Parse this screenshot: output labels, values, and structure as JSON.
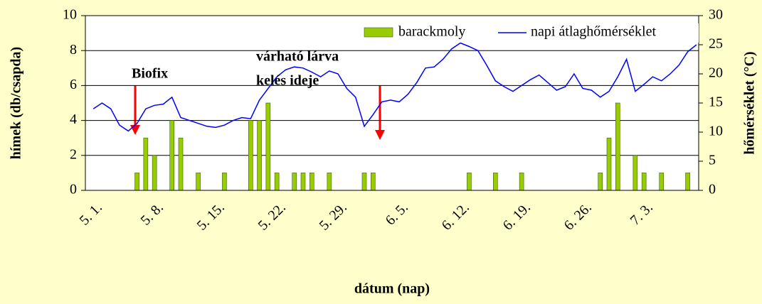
{
  "chart_data": {
    "type": "bar",
    "x_label": "dátum (nap)",
    "y_label": "hímek (db/csapda)",
    "y2_label": "hőmérséklet (°C)",
    "categories": [
      "5. 1.",
      null,
      null,
      null,
      null,
      null,
      null,
      "5. 8.",
      null,
      null,
      null,
      null,
      null,
      null,
      "5. 15.",
      null,
      null,
      null,
      null,
      null,
      null,
      "5. 22.",
      null,
      null,
      null,
      null,
      null,
      null,
      "5. 29.",
      null,
      null,
      null,
      null,
      null,
      null,
      "6. 5.",
      null,
      null,
      null,
      null,
      null,
      null,
      "6. 12.",
      null,
      null,
      null,
      null,
      null,
      null,
      "6. 19.",
      null,
      null,
      null,
      null,
      null,
      null,
      "6. 26.",
      null,
      null,
      null,
      null,
      null,
      null,
      "7. 3.",
      null,
      null,
      null,
      null,
      null,
      null
    ],
    "series": [
      {
        "name": "barackmoly",
        "type": "bar",
        "color": "#99cc00",
        "values": [
          0,
          0,
          0,
          0,
          0,
          1,
          3,
          2,
          0,
          4,
          3,
          0,
          1,
          0,
          0,
          1,
          0,
          0,
          4,
          4,
          5,
          1,
          0,
          1,
          1,
          1,
          0,
          1,
          0,
          0,
          0,
          1,
          1,
          0,
          0,
          0,
          0,
          0,
          0,
          0,
          0,
          0,
          0,
          1,
          0,
          0,
          1,
          0,
          0,
          1,
          0,
          0,
          0,
          0,
          0,
          0,
          0,
          0,
          1,
          3,
          5,
          0,
          2,
          1,
          0,
          1,
          0,
          0,
          1,
          0
        ]
      },
      {
        "name": "napi átlaghőmérséklet",
        "type": "line",
        "axis": "y2",
        "color": "#0000ff",
        "values": [
          14,
          15,
          14,
          11.2,
          10.2,
          11.5,
          14,
          14.6,
          14.8,
          16,
          12.5,
          12,
          11.5,
          11,
          10.8,
          11.2,
          12,
          12.5,
          12.3,
          15.5,
          17.5,
          19.5,
          20.7,
          21.2,
          21,
          20.3,
          19.5,
          20.5,
          20,
          17.5,
          16,
          11,
          13,
          15.2,
          15.5,
          15.2,
          16.5,
          18.5,
          21,
          21.2,
          22.5,
          24.3,
          25.3,
          24.7,
          24,
          21.5,
          18.8,
          17.8,
          17,
          18,
          19,
          19.8,
          18.5,
          17.2,
          17.8,
          20,
          17.5,
          17.2,
          16,
          17,
          19.5,
          22.5,
          17,
          18.2,
          19.5,
          18.8,
          20,
          21.5,
          23.8,
          25
        ]
      }
    ],
    "ylim": [
      0,
      10
    ],
    "yticks": [
      0,
      2,
      4,
      6,
      8,
      10
    ],
    "y2lim": [
      0,
      30
    ],
    "y2ticks": [
      0,
      5,
      10,
      15,
      20,
      25,
      30
    ],
    "grid": true,
    "legend": "top-right",
    "annotations": [
      {
        "lines": [
          "Biofix"
        ],
        "color": "#ff0000"
      },
      {
        "lines": [
          "várható lárva",
          "kelés ideje"
        ],
        "color": "#ff0000"
      }
    ]
  }
}
